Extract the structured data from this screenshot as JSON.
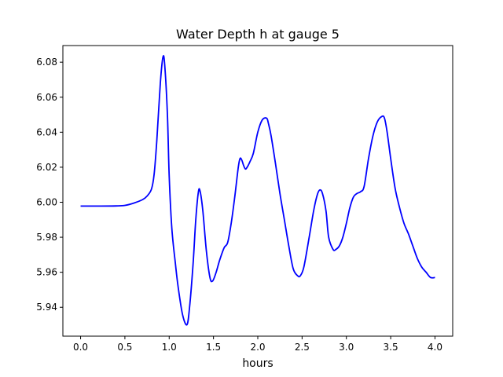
{
  "chart_data": {
    "type": "line",
    "title": "Water Depth h at gauge 5",
    "xlabel": "hours",
    "ylabel": "",
    "xlim": [
      -0.2,
      4.2
    ],
    "ylim": [
      5.9235,
      6.0895
    ],
    "grid": false,
    "x_ticks": [
      0.0,
      0.5,
      1.0,
      1.5,
      2.0,
      2.5,
      3.0,
      3.5,
      4.0
    ],
    "x_tick_labels": [
      "0.0",
      "0.5",
      "1.0",
      "1.5",
      "2.0",
      "2.5",
      "3.0",
      "3.5",
      "4.0"
    ],
    "y_ticks": [
      5.94,
      5.96,
      5.98,
      6.0,
      6.02,
      6.04,
      6.06,
      6.08
    ],
    "y_tick_labels": [
      "5.94",
      "5.96",
      "5.98",
      "6.00",
      "6.02",
      "6.04",
      "6.06",
      "6.08"
    ],
    "series": [
      {
        "color": "#0000ff",
        "x": [
          0.0,
          0.2,
          0.4,
          0.5,
          0.6,
          0.7,
          0.75,
          0.8,
          0.83,
          0.86,
          0.9,
          0.93,
          0.95,
          0.98,
          1.0,
          1.03,
          1.07,
          1.1,
          1.15,
          1.2,
          1.23,
          1.27,
          1.3,
          1.33,
          1.35,
          1.38,
          1.42,
          1.46,
          1.49,
          1.53,
          1.57,
          1.62,
          1.66,
          1.7,
          1.74,
          1.78,
          1.8,
          1.82,
          1.84,
          1.86,
          1.88,
          1.91,
          1.95,
          2.0,
          2.05,
          2.1,
          2.12,
          2.15,
          2.2,
          2.25,
          2.3,
          2.35,
          2.4,
          2.45,
          2.48,
          2.52,
          2.58,
          2.63,
          2.67,
          2.7,
          2.73,
          2.77,
          2.8,
          2.85,
          2.88,
          2.92,
          2.96,
          3.0,
          3.04,
          3.08,
          3.12,
          3.16,
          3.2,
          3.25,
          3.3,
          3.35,
          3.4,
          3.43,
          3.46,
          3.5,
          3.55,
          3.6,
          3.65,
          3.7,
          3.75,
          3.8,
          3.85,
          3.9,
          3.95,
          4.0
        ],
        "y": [
          5.9978,
          5.9978,
          5.9979,
          5.9982,
          5.9995,
          6.0015,
          6.0035,
          6.0075,
          6.016,
          6.035,
          6.068,
          6.083,
          6.078,
          6.05,
          6.015,
          5.985,
          5.965,
          5.952,
          5.936,
          5.93,
          5.94,
          5.965,
          5.99,
          6.006,
          6.006,
          5.995,
          5.972,
          5.957,
          5.955,
          5.96,
          5.967,
          5.974,
          5.977,
          5.988,
          6.003,
          6.02,
          6.025,
          6.024,
          6.021,
          6.019,
          6.02,
          6.023,
          6.028,
          6.04,
          6.047,
          6.048,
          6.045,
          6.038,
          6.022,
          6.005,
          5.99,
          5.975,
          5.962,
          5.958,
          5.958,
          5.963,
          5.98,
          5.995,
          6.004,
          6.007,
          6.005,
          5.995,
          5.98,
          5.973,
          5.973,
          5.975,
          5.98,
          5.988,
          5.997,
          6.003,
          6.005,
          6.006,
          6.009,
          6.025,
          6.038,
          6.046,
          6.049,
          6.048,
          6.04,
          6.025,
          6.008,
          5.997,
          5.988,
          5.982,
          5.975,
          5.968,
          5.963,
          5.96,
          5.957,
          5.957
        ]
      }
    ]
  }
}
